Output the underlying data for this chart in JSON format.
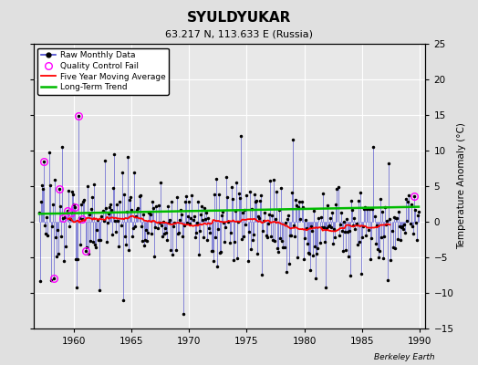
{
  "title": "SYULDYUKAR",
  "subtitle": "63.217 N, 113.633 E (Russia)",
  "ylabel_right": "Temperature Anomaly (°C)",
  "xlim": [
    1956.5,
    1990.5
  ],
  "ylim": [
    -15,
    25
  ],
  "yticks": [
    -15,
    -10,
    -5,
    0,
    5,
    10,
    15,
    20,
    25
  ],
  "xticks": [
    1960,
    1965,
    1970,
    1975,
    1980,
    1985,
    1990
  ],
  "background_color": "#e0e0e0",
  "plot_bg_color": "#e8e8e8",
  "grid_color": "#ffffff",
  "raw_line_color": "#4444cc",
  "raw_marker_color": "#000000",
  "qc_fail_color": "#ff00ff",
  "moving_avg_color": "#ff0000",
  "trend_color": "#00bb00",
  "watermark": "Berkeley Earth",
  "seed": 17,
  "start_year": 1957.0,
  "end_year": 1990.0,
  "noise_std": 3.2,
  "qc_fail_years": [
    1957.42,
    1958.25,
    1958.75,
    1959.08,
    1959.42,
    1959.75,
    1960.08,
    1960.42,
    1960.75,
    1961.0,
    1989.5
  ]
}
